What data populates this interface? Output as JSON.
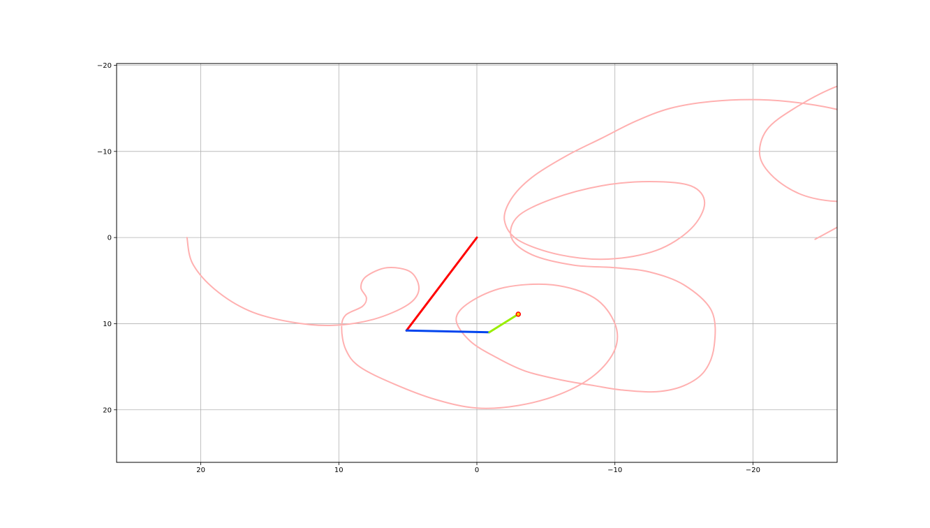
{
  "chart_data": {
    "type": "line",
    "title": "",
    "xlabel": "",
    "ylabel": "",
    "grid": true,
    "xlim": [
      26.1,
      -26.1
    ],
    "ylim": [
      26.1,
      -20.2
    ],
    "xticks": [
      {
        "value": 20,
        "label": "20"
      },
      {
        "value": 10,
        "label": "10"
      },
      {
        "value": 0,
        "label": "0"
      },
      {
        "value": -10,
        "label": "−10"
      },
      {
        "value": -20,
        "label": "−20"
      }
    ],
    "yticks": [
      {
        "value": -20,
        "label": "−20"
      },
      {
        "value": -10,
        "label": "−10"
      },
      {
        "value": 0,
        "label": "0"
      },
      {
        "value": 10,
        "label": "10"
      },
      {
        "value": 20,
        "label": "20"
      }
    ],
    "trace": {
      "name": "trace",
      "color": "#ffb0b0",
      "points": [
        [
          21.0,
          0.0
        ],
        [
          20.6,
          3.0
        ],
        [
          19.0,
          6.0
        ],
        [
          16.5,
          8.5
        ],
        [
          13.5,
          9.8
        ],
        [
          10.5,
          10.2
        ],
        [
          7.5,
          9.5
        ],
        [
          5.0,
          7.8
        ],
        [
          4.2,
          6.0
        ],
        [
          4.8,
          4.0
        ],
        [
          6.5,
          3.5
        ],
        [
          8.0,
          4.5
        ],
        [
          8.4,
          5.8
        ],
        [
          8.0,
          7.0
        ],
        [
          8.3,
          8.0
        ],
        [
          9.5,
          9.0
        ],
        [
          9.8,
          10.5
        ],
        [
          9.5,
          13.0
        ],
        [
          8.5,
          15.0
        ],
        [
          6.0,
          17.0
        ],
        [
          3.0,
          18.8
        ],
        [
          0.0,
          19.8
        ],
        [
          -3.0,
          19.5
        ],
        [
          -6.0,
          18.2
        ],
        [
          -8.5,
          16.0
        ],
        [
          -10.0,
          13.0
        ],
        [
          -10.0,
          10.0
        ],
        [
          -8.5,
          7.0
        ],
        [
          -5.5,
          5.5
        ],
        [
          -2.0,
          5.8
        ],
        [
          0.5,
          7.5
        ],
        [
          1.5,
          9.5
        ],
        [
          0.5,
          12.0
        ],
        [
          -1.5,
          14.0
        ],
        [
          -3.5,
          15.5
        ],
        [
          -6.0,
          16.5
        ],
        [
          -8.5,
          17.2
        ],
        [
          -10.5,
          17.7
        ],
        [
          -13.0,
          17.9
        ],
        [
          -15.0,
          17.2
        ],
        [
          -16.5,
          15.5
        ],
        [
          -17.2,
          12.5
        ],
        [
          -17.0,
          8.5
        ],
        [
          -15.0,
          5.5
        ],
        [
          -12.5,
          4.0
        ],
        [
          -10.0,
          3.5
        ],
        [
          -7.0,
          3.2
        ],
        [
          -4.0,
          2.0
        ],
        [
          -2.5,
          0.0
        ],
        [
          -3.0,
          -2.5
        ],
        [
          -5.5,
          -4.5
        ],
        [
          -9.0,
          -6.0
        ],
        [
          -12.5,
          -6.5
        ],
        [
          -15.5,
          -6.0
        ],
        [
          -16.5,
          -4.0
        ],
        [
          -15.5,
          -1.0
        ],
        [
          -13.0,
          1.5
        ],
        [
          -9.5,
          2.5
        ],
        [
          -6.0,
          2.0
        ],
        [
          -3.0,
          0.3
        ],
        [
          -2.0,
          -2.0
        ],
        [
          -2.5,
          -4.5
        ],
        [
          -4.0,
          -7.0
        ],
        [
          -6.5,
          -9.5
        ],
        [
          -9.0,
          -11.5
        ],
        [
          -11.5,
          -13.5
        ],
        [
          -14.0,
          -15.0
        ],
        [
          -17.0,
          -15.8
        ],
        [
          -20.5,
          -16.0
        ],
        [
          -24.0,
          -15.5
        ],
        [
          -27.0,
          -14.5
        ],
        [
          -29.5,
          -13.0
        ],
        [
          -31.0,
          -11.0
        ],
        [
          -31.5,
          -8.5
        ],
        [
          -30.5,
          -6.0
        ],
        [
          -28.5,
          -4.5
        ],
        [
          -26.0,
          -4.2
        ],
        [
          -23.5,
          -5.0
        ],
        [
          -21.5,
          -7.0
        ],
        [
          -20.5,
          -9.5
        ],
        [
          -21.0,
          -12.5
        ],
        [
          -23.0,
          -15.0
        ],
        [
          -26.0,
          -17.5
        ],
        [
          -29.0,
          -18.8
        ],
        [
          -32.0,
          -18.5
        ],
        [
          -34.5,
          -16.5
        ],
        [
          -36.0,
          -13.5
        ],
        [
          -36.0,
          -10.0
        ],
        [
          -34.5,
          -7.0
        ],
        [
          -32.0,
          -5.5
        ],
        [
          -29.5,
          -4.5
        ],
        [
          -27.0,
          -2.0
        ],
        [
          -24.5,
          0.2
        ]
      ]
    },
    "arm": {
      "origin": [
        0,
        0
      ],
      "segments": [
        {
          "name": "link-1",
          "color": "#ff0000",
          "from": [
            0,
            0
          ],
          "to": [
            5.1,
            10.8
          ]
        },
        {
          "name": "link-2",
          "color": "#0044ee",
          "from": [
            5.1,
            10.8
          ],
          "to": [
            -0.9,
            11.0
          ]
        },
        {
          "name": "link-3",
          "color": "#99ee00",
          "from": [
            -0.9,
            11.0
          ],
          "to": [
            -3.0,
            8.9
          ]
        }
      ],
      "end_effector": {
        "name": "end-point",
        "point": [
          -3.0,
          8.9
        ],
        "fill": "#ffcc00",
        "stroke": "#ff0000"
      }
    }
  }
}
